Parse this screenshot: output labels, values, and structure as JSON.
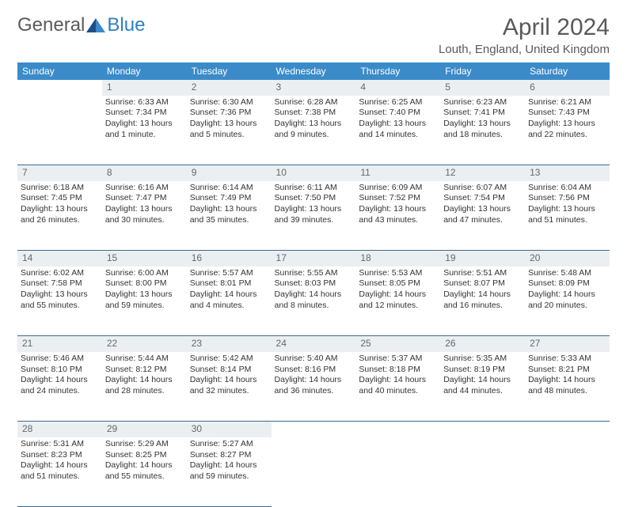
{
  "logo": {
    "general": "General",
    "blue": "Blue"
  },
  "title": "April 2024",
  "location": "Louth, England, United Kingdom",
  "headers": [
    "Sunday",
    "Monday",
    "Tuesday",
    "Wednesday",
    "Thursday",
    "Friday",
    "Saturday"
  ],
  "colors": {
    "header_bg": "#3b8bc9",
    "header_text": "#ffffff",
    "daynum_bg": "#eceff1",
    "daynum_text": "#5f6a72",
    "cell_border": "#3b6a8f",
    "body_text": "#333333",
    "title_text": "#5a5a5a",
    "logo_blue": "#2d7fc4"
  },
  "typography": {
    "title_fontsize": 30,
    "location_fontsize": 15,
    "header_fontsize": 12,
    "daynum_fontsize": 12,
    "cell_fontsize": 10.5
  },
  "weeks": [
    {
      "nums": [
        "",
        "1",
        "2",
        "3",
        "4",
        "5",
        "6"
      ],
      "cells": [
        null,
        {
          "sr": "Sunrise: 6:33 AM",
          "ss": "Sunset: 7:34 PM",
          "dl1": "Daylight: 13 hours",
          "dl2": "and 1 minute."
        },
        {
          "sr": "Sunrise: 6:30 AM",
          "ss": "Sunset: 7:36 PM",
          "dl1": "Daylight: 13 hours",
          "dl2": "and 5 minutes."
        },
        {
          "sr": "Sunrise: 6:28 AM",
          "ss": "Sunset: 7:38 PM",
          "dl1": "Daylight: 13 hours",
          "dl2": "and 9 minutes."
        },
        {
          "sr": "Sunrise: 6:25 AM",
          "ss": "Sunset: 7:40 PM",
          "dl1": "Daylight: 13 hours",
          "dl2": "and 14 minutes."
        },
        {
          "sr": "Sunrise: 6:23 AM",
          "ss": "Sunset: 7:41 PM",
          "dl1": "Daylight: 13 hours",
          "dl2": "and 18 minutes."
        },
        {
          "sr": "Sunrise: 6:21 AM",
          "ss": "Sunset: 7:43 PM",
          "dl1": "Daylight: 13 hours",
          "dl2": "and 22 minutes."
        }
      ]
    },
    {
      "nums": [
        "7",
        "8",
        "9",
        "10",
        "11",
        "12",
        "13"
      ],
      "cells": [
        {
          "sr": "Sunrise: 6:18 AM",
          "ss": "Sunset: 7:45 PM",
          "dl1": "Daylight: 13 hours",
          "dl2": "and 26 minutes."
        },
        {
          "sr": "Sunrise: 6:16 AM",
          "ss": "Sunset: 7:47 PM",
          "dl1": "Daylight: 13 hours",
          "dl2": "and 30 minutes."
        },
        {
          "sr": "Sunrise: 6:14 AM",
          "ss": "Sunset: 7:49 PM",
          "dl1": "Daylight: 13 hours",
          "dl2": "and 35 minutes."
        },
        {
          "sr": "Sunrise: 6:11 AM",
          "ss": "Sunset: 7:50 PM",
          "dl1": "Daylight: 13 hours",
          "dl2": "and 39 minutes."
        },
        {
          "sr": "Sunrise: 6:09 AM",
          "ss": "Sunset: 7:52 PM",
          "dl1": "Daylight: 13 hours",
          "dl2": "and 43 minutes."
        },
        {
          "sr": "Sunrise: 6:07 AM",
          "ss": "Sunset: 7:54 PM",
          "dl1": "Daylight: 13 hours",
          "dl2": "and 47 minutes."
        },
        {
          "sr": "Sunrise: 6:04 AM",
          "ss": "Sunset: 7:56 PM",
          "dl1": "Daylight: 13 hours",
          "dl2": "and 51 minutes."
        }
      ]
    },
    {
      "nums": [
        "14",
        "15",
        "16",
        "17",
        "18",
        "19",
        "20"
      ],
      "cells": [
        {
          "sr": "Sunrise: 6:02 AM",
          "ss": "Sunset: 7:58 PM",
          "dl1": "Daylight: 13 hours",
          "dl2": "and 55 minutes."
        },
        {
          "sr": "Sunrise: 6:00 AM",
          "ss": "Sunset: 8:00 PM",
          "dl1": "Daylight: 13 hours",
          "dl2": "and 59 minutes."
        },
        {
          "sr": "Sunrise: 5:57 AM",
          "ss": "Sunset: 8:01 PM",
          "dl1": "Daylight: 14 hours",
          "dl2": "and 4 minutes."
        },
        {
          "sr": "Sunrise: 5:55 AM",
          "ss": "Sunset: 8:03 PM",
          "dl1": "Daylight: 14 hours",
          "dl2": "and 8 minutes."
        },
        {
          "sr": "Sunrise: 5:53 AM",
          "ss": "Sunset: 8:05 PM",
          "dl1": "Daylight: 14 hours",
          "dl2": "and 12 minutes."
        },
        {
          "sr": "Sunrise: 5:51 AM",
          "ss": "Sunset: 8:07 PM",
          "dl1": "Daylight: 14 hours",
          "dl2": "and 16 minutes."
        },
        {
          "sr": "Sunrise: 5:48 AM",
          "ss": "Sunset: 8:09 PM",
          "dl1": "Daylight: 14 hours",
          "dl2": "and 20 minutes."
        }
      ]
    },
    {
      "nums": [
        "21",
        "22",
        "23",
        "24",
        "25",
        "26",
        "27"
      ],
      "cells": [
        {
          "sr": "Sunrise: 5:46 AM",
          "ss": "Sunset: 8:10 PM",
          "dl1": "Daylight: 14 hours",
          "dl2": "and 24 minutes."
        },
        {
          "sr": "Sunrise: 5:44 AM",
          "ss": "Sunset: 8:12 PM",
          "dl1": "Daylight: 14 hours",
          "dl2": "and 28 minutes."
        },
        {
          "sr": "Sunrise: 5:42 AM",
          "ss": "Sunset: 8:14 PM",
          "dl1": "Daylight: 14 hours",
          "dl2": "and 32 minutes."
        },
        {
          "sr": "Sunrise: 5:40 AM",
          "ss": "Sunset: 8:16 PM",
          "dl1": "Daylight: 14 hours",
          "dl2": "and 36 minutes."
        },
        {
          "sr": "Sunrise: 5:37 AM",
          "ss": "Sunset: 8:18 PM",
          "dl1": "Daylight: 14 hours",
          "dl2": "and 40 minutes."
        },
        {
          "sr": "Sunrise: 5:35 AM",
          "ss": "Sunset: 8:19 PM",
          "dl1": "Daylight: 14 hours",
          "dl2": "and 44 minutes."
        },
        {
          "sr": "Sunrise: 5:33 AM",
          "ss": "Sunset: 8:21 PM",
          "dl1": "Daylight: 14 hours",
          "dl2": "and 48 minutes."
        }
      ]
    },
    {
      "nums": [
        "28",
        "29",
        "30",
        "",
        "",
        "",
        ""
      ],
      "cells": [
        {
          "sr": "Sunrise: 5:31 AM",
          "ss": "Sunset: 8:23 PM",
          "dl1": "Daylight: 14 hours",
          "dl2": "and 51 minutes."
        },
        {
          "sr": "Sunrise: 5:29 AM",
          "ss": "Sunset: 8:25 PM",
          "dl1": "Daylight: 14 hours",
          "dl2": "and 55 minutes."
        },
        {
          "sr": "Sunrise: 5:27 AM",
          "ss": "Sunset: 8:27 PM",
          "dl1": "Daylight: 14 hours",
          "dl2": "and 59 minutes."
        },
        null,
        null,
        null,
        null
      ]
    }
  ]
}
